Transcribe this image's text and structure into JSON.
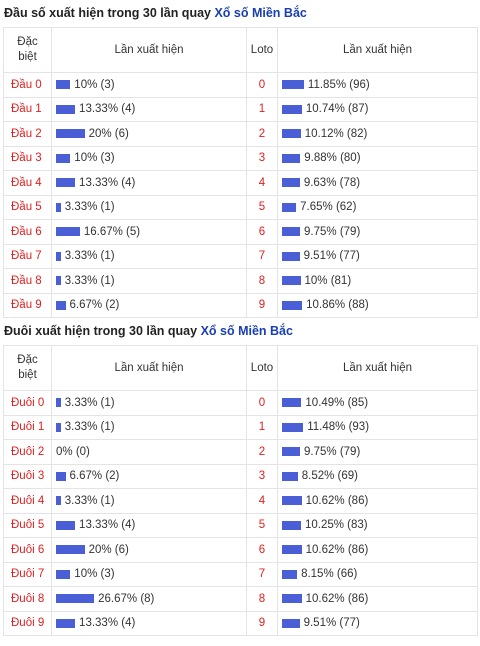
{
  "colors": {
    "bar": "#4a5fd6",
    "label": "#e02020",
    "link": "#1a3fb0"
  },
  "sections": [
    {
      "title_prefix": "Đầu số xuất hiện trong 30 lần quay",
      "title_link": "Xổ số Miền Bắc",
      "headers": {
        "special_line1": "Đặc",
        "special_line2": "biệt",
        "count": "Lần xuất hiện",
        "loto": "Loto",
        "loto_count": "Lần xuất hiện"
      },
      "rows": [
        {
          "label": "Đầu 0",
          "special_pct": 10,
          "special_text": "10% (3)",
          "loto": "0",
          "loto_pct": 11.85,
          "loto_text": "11.85% (96)"
        },
        {
          "label": "Đầu 1",
          "special_pct": 13.33,
          "special_text": "13.33% (4)",
          "loto": "1",
          "loto_pct": 10.74,
          "loto_text": "10.74% (87)"
        },
        {
          "label": "Đầu 2",
          "special_pct": 20,
          "special_text": "20% (6)",
          "loto": "2",
          "loto_pct": 10.12,
          "loto_text": "10.12% (82)"
        },
        {
          "label": "Đầu 3",
          "special_pct": 10,
          "special_text": "10% (3)",
          "loto": "3",
          "loto_pct": 9.88,
          "loto_text": "9.88% (80)"
        },
        {
          "label": "Đầu 4",
          "special_pct": 13.33,
          "special_text": "13.33% (4)",
          "loto": "4",
          "loto_pct": 9.63,
          "loto_text": "9.63% (78)"
        },
        {
          "label": "Đầu 5",
          "special_pct": 3.33,
          "special_text": "3.33% (1)",
          "loto": "5",
          "loto_pct": 7.65,
          "loto_text": "7.65% (62)"
        },
        {
          "label": "Đầu 6",
          "special_pct": 16.67,
          "special_text": "16.67% (5)",
          "loto": "6",
          "loto_pct": 9.75,
          "loto_text": "9.75% (79)"
        },
        {
          "label": "Đầu 7",
          "special_pct": 3.33,
          "special_text": "3.33% (1)",
          "loto": "7",
          "loto_pct": 9.51,
          "loto_text": "9.51% (77)"
        },
        {
          "label": "Đầu 8",
          "special_pct": 3.33,
          "special_text": "3.33% (1)",
          "loto": "8",
          "loto_pct": 10,
          "loto_text": "10% (81)"
        },
        {
          "label": "Đầu 9",
          "special_pct": 6.67,
          "special_text": "6.67% (2)",
          "loto": "9",
          "loto_pct": 10.86,
          "loto_text": "10.86% (88)"
        }
      ]
    },
    {
      "title_prefix": "Đuôi xuất hiện trong 30 lần quay",
      "title_link": "Xổ số Miền Bắc",
      "headers": {
        "special_line1": "Đặc",
        "special_line2": "biệt",
        "count": "Lần xuất hiện",
        "loto": "Loto",
        "loto_count": "Lần xuất hiện"
      },
      "rows": [
        {
          "label": "Đuôi 0",
          "special_pct": 3.33,
          "special_text": "3.33% (1)",
          "loto": "0",
          "loto_pct": 10.49,
          "loto_text": "10.49% (85)"
        },
        {
          "label": "Đuôi 1",
          "special_pct": 3.33,
          "special_text": "3.33% (1)",
          "loto": "1",
          "loto_pct": 11.48,
          "loto_text": "11.48% (93)"
        },
        {
          "label": "Đuôi 2",
          "special_pct": 0,
          "special_text": "0% (0)",
          "loto": "2",
          "loto_pct": 9.75,
          "loto_text": "9.75% (79)"
        },
        {
          "label": "Đuôi 3",
          "special_pct": 6.67,
          "special_text": "6.67% (2)",
          "loto": "3",
          "loto_pct": 8.52,
          "loto_text": "8.52% (69)"
        },
        {
          "label": "Đuôi 4",
          "special_pct": 3.33,
          "special_text": "3.33% (1)",
          "loto": "4",
          "loto_pct": 10.62,
          "loto_text": "10.62% (86)"
        },
        {
          "label": "Đuôi 5",
          "special_pct": 13.33,
          "special_text": "13.33% (4)",
          "loto": "5",
          "loto_pct": 10.25,
          "loto_text": "10.25% (83)"
        },
        {
          "label": "Đuôi 6",
          "special_pct": 20,
          "special_text": "20% (6)",
          "loto": "6",
          "loto_pct": 10.62,
          "loto_text": "10.62% (86)"
        },
        {
          "label": "Đuôi 7",
          "special_pct": 10,
          "special_text": "10% (3)",
          "loto": "7",
          "loto_pct": 8.15,
          "loto_text": "8.15% (66)"
        },
        {
          "label": "Đuôi 8",
          "special_pct": 26.67,
          "special_text": "26.67% (8)",
          "loto": "8",
          "loto_pct": 10.62,
          "loto_text": "10.62% (86)"
        },
        {
          "label": "Đuôi 9",
          "special_pct": 13.33,
          "special_text": "13.33% (4)",
          "loto": "9",
          "loto_pct": 9.51,
          "loto_text": "9.51% (77)"
        }
      ]
    }
  ]
}
